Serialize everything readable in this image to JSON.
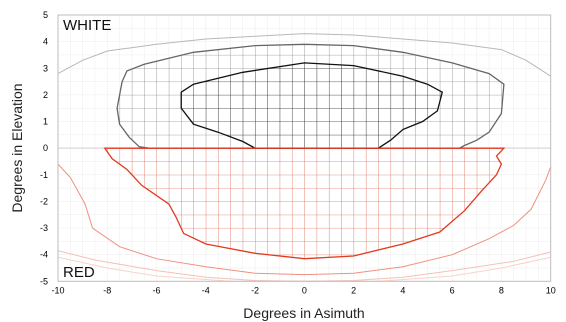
{
  "chart_data": {
    "type": "contour",
    "xlabel": "Degrees in Asimuth",
    "ylabel": "Degrees in Elevation",
    "xlim": [
      -10,
      10
    ],
    "ylim": [
      -5,
      5
    ],
    "x_ticks": [
      "-10",
      "-8",
      "-6",
      "-4",
      "-2",
      "0",
      "2",
      "4",
      "6",
      "8",
      "10"
    ],
    "y_ticks": [
      "5",
      "4",
      "3",
      "2",
      "1",
      "0",
      "-1",
      "-2",
      "-3",
      "-4",
      "-5"
    ],
    "grid_step": 0.5,
    "grid_color": "#c8c8c8",
    "annotations": [
      {
        "text": "WHITE",
        "region": "upper-left"
      },
      {
        "text": "RED",
        "region": "lower-left"
      }
    ],
    "series": [
      {
        "color": "#b8b8b8",
        "hatched": false,
        "points": [
          [
            -10,
            2.8
          ],
          [
            -9,
            3.3
          ],
          [
            -8,
            3.65
          ],
          [
            -6,
            3.9
          ],
          [
            -4,
            4.1
          ],
          [
            -2,
            4.2
          ],
          [
            0,
            4.3
          ],
          [
            2,
            4.25
          ],
          [
            4,
            4.1
          ],
          [
            6,
            3.95
          ],
          [
            8,
            3.7
          ],
          [
            9,
            3.3
          ],
          [
            10,
            2.7
          ]
        ]
      },
      {
        "color": "#666666",
        "hatched": true,
        "points": [
          [
            -7.4,
            2.5
          ],
          [
            -7.2,
            2.9
          ],
          [
            -6.5,
            3.15
          ],
          [
            -4.5,
            3.6
          ],
          [
            -2,
            3.85
          ],
          [
            0,
            3.9
          ],
          [
            2,
            3.85
          ],
          [
            4,
            3.6
          ],
          [
            6,
            3.2
          ],
          [
            7.5,
            2.8
          ],
          [
            8.1,
            2.4
          ],
          [
            8.0,
            1.3
          ],
          [
            7.5,
            0.6
          ],
          [
            7.0,
            0.3
          ],
          [
            6.5,
            0.1
          ],
          [
            6.3,
            0
          ],
          [
            -6.3,
            0
          ],
          [
            -6.7,
            0.05
          ],
          [
            -7.1,
            0.4
          ],
          [
            -7.5,
            0.9
          ],
          [
            -7.6,
            1.5
          ],
          [
            -7.4,
            2.5
          ]
        ]
      },
      {
        "color": "#111111",
        "hatched": true,
        "points": [
          [
            -5.0,
            2.1
          ],
          [
            -4.5,
            2.4
          ],
          [
            -2.5,
            2.85
          ],
          [
            0,
            3.2
          ],
          [
            2,
            3.1
          ],
          [
            4,
            2.7
          ],
          [
            5,
            2.4
          ],
          [
            5.6,
            2.1
          ],
          [
            5.4,
            1.4
          ],
          [
            4.8,
            1.0
          ],
          [
            4,
            0.7
          ],
          [
            3.5,
            0.3
          ],
          [
            3,
            0
          ],
          [
            -2,
            0
          ],
          [
            -2.5,
            0.25
          ],
          [
            -3.5,
            0.6
          ],
          [
            -4.5,
            0.9
          ],
          [
            -5.0,
            1.5
          ],
          [
            -5.0,
            2.1
          ]
        ]
      },
      {
        "color": "#e23a1e",
        "hatched": true,
        "points": [
          [
            -8.1,
            0
          ],
          [
            -7.8,
            -0.4
          ],
          [
            -7.2,
            -0.8
          ],
          [
            -6.6,
            -1.4
          ],
          [
            -5.5,
            -2.1
          ],
          [
            -5.2,
            -2.6
          ],
          [
            -4.9,
            -3.2
          ],
          [
            -4.0,
            -3.6
          ],
          [
            -2,
            -3.95
          ],
          [
            0,
            -4.15
          ],
          [
            2,
            -4.05
          ],
          [
            4,
            -3.6
          ],
          [
            5.5,
            -3.15
          ],
          [
            6.5,
            -2.35
          ],
          [
            7.2,
            -1.6
          ],
          [
            7.8,
            -1.0
          ],
          [
            8.0,
            -0.6
          ],
          [
            7.8,
            -0.3
          ],
          [
            8.1,
            0
          ]
        ]
      },
      {
        "color": "#f09080",
        "hatched": false,
        "points": [
          [
            -10,
            -0.6
          ],
          [
            -9.5,
            -1.1
          ],
          [
            -8.9,
            -2.1
          ],
          [
            -8.6,
            -3.0
          ],
          [
            -7.5,
            -3.7
          ],
          [
            -6,
            -4.15
          ],
          [
            -4,
            -4.45
          ],
          [
            -2,
            -4.7
          ],
          [
            0,
            -4.75
          ],
          [
            2,
            -4.7
          ],
          [
            4,
            -4.45
          ],
          [
            6,
            -4.0
          ],
          [
            7.5,
            -3.4
          ],
          [
            8.5,
            -2.9
          ],
          [
            9.2,
            -2.3
          ],
          [
            9.8,
            -1.2
          ],
          [
            10,
            -0.7
          ]
        ]
      },
      {
        "color": "#f5c0b8",
        "hatched": false,
        "points": [
          [
            -10,
            -3.85
          ],
          [
            -8.5,
            -4.2
          ],
          [
            -6,
            -4.6
          ],
          [
            -4,
            -4.85
          ],
          [
            -2,
            -4.97
          ],
          [
            0,
            -5.0
          ],
          [
            2,
            -4.97
          ],
          [
            4,
            -4.85
          ],
          [
            6,
            -4.6
          ],
          [
            8.5,
            -4.25
          ],
          [
            10,
            -3.9
          ]
        ]
      },
      {
        "color": "#f9d2cc",
        "hatched": false,
        "points": [
          [
            -10,
            -4.1
          ],
          [
            -8,
            -4.5
          ],
          [
            -6,
            -4.8
          ],
          [
            -3,
            -5.0
          ],
          [
            3,
            -5.0
          ],
          [
            6,
            -4.8
          ],
          [
            8,
            -4.5
          ],
          [
            10,
            -4.1
          ]
        ]
      }
    ]
  }
}
